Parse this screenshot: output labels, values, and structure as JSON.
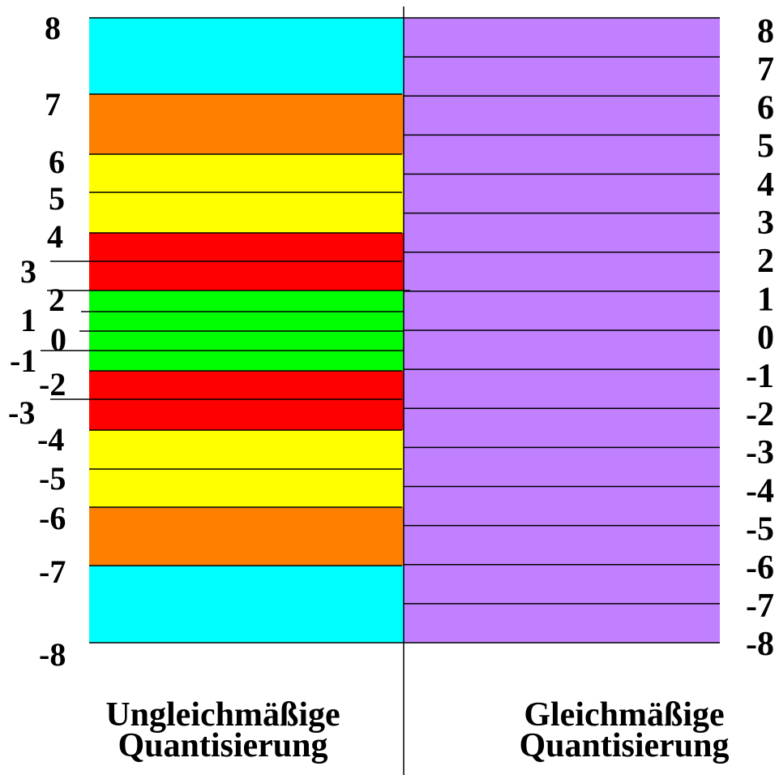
{
  "left_panel": {
    "title_line1": "Ungleichmäßige",
    "title_line2": "Quantisierung",
    "bands": [
      {
        "from": 7,
        "to": 8,
        "color": "#00ffff"
      },
      {
        "from": 6,
        "to": 7,
        "color": "#ff8000"
      },
      {
        "from": 4,
        "to": 6,
        "color": "#ffff00"
      },
      {
        "from": 2,
        "to": 4,
        "color": "#ff0000"
      },
      {
        "from": -2,
        "to": 2,
        "color": "#00ff00"
      },
      {
        "from": -4,
        "to": -2,
        "color": "#ff0000"
      },
      {
        "from": -6,
        "to": -4,
        "color": "#ffff00"
      },
      {
        "from": -7,
        "to": -6,
        "color": "#ff8000"
      },
      {
        "from": -8,
        "to": -7,
        "color": "#00ffff"
      }
    ],
    "tick_labels": [
      "8",
      "7",
      "6",
      "5",
      "4",
      "3",
      "2",
      "1",
      "0",
      "-1",
      "-2",
      "-3",
      "-4",
      "-5",
      "-6",
      "-7",
      "-8"
    ]
  },
  "right_panel": {
    "title_line1": "Gleichmäßige",
    "title_line2": "Quantisierung",
    "color": "#c080ff",
    "tick_labels": [
      "8",
      "7",
      "6",
      "5",
      "4",
      "3",
      "2",
      "1",
      "0",
      "-1",
      "-2",
      "-3",
      "-4",
      "-5",
      "-6",
      "-7",
      "-8"
    ]
  }
}
